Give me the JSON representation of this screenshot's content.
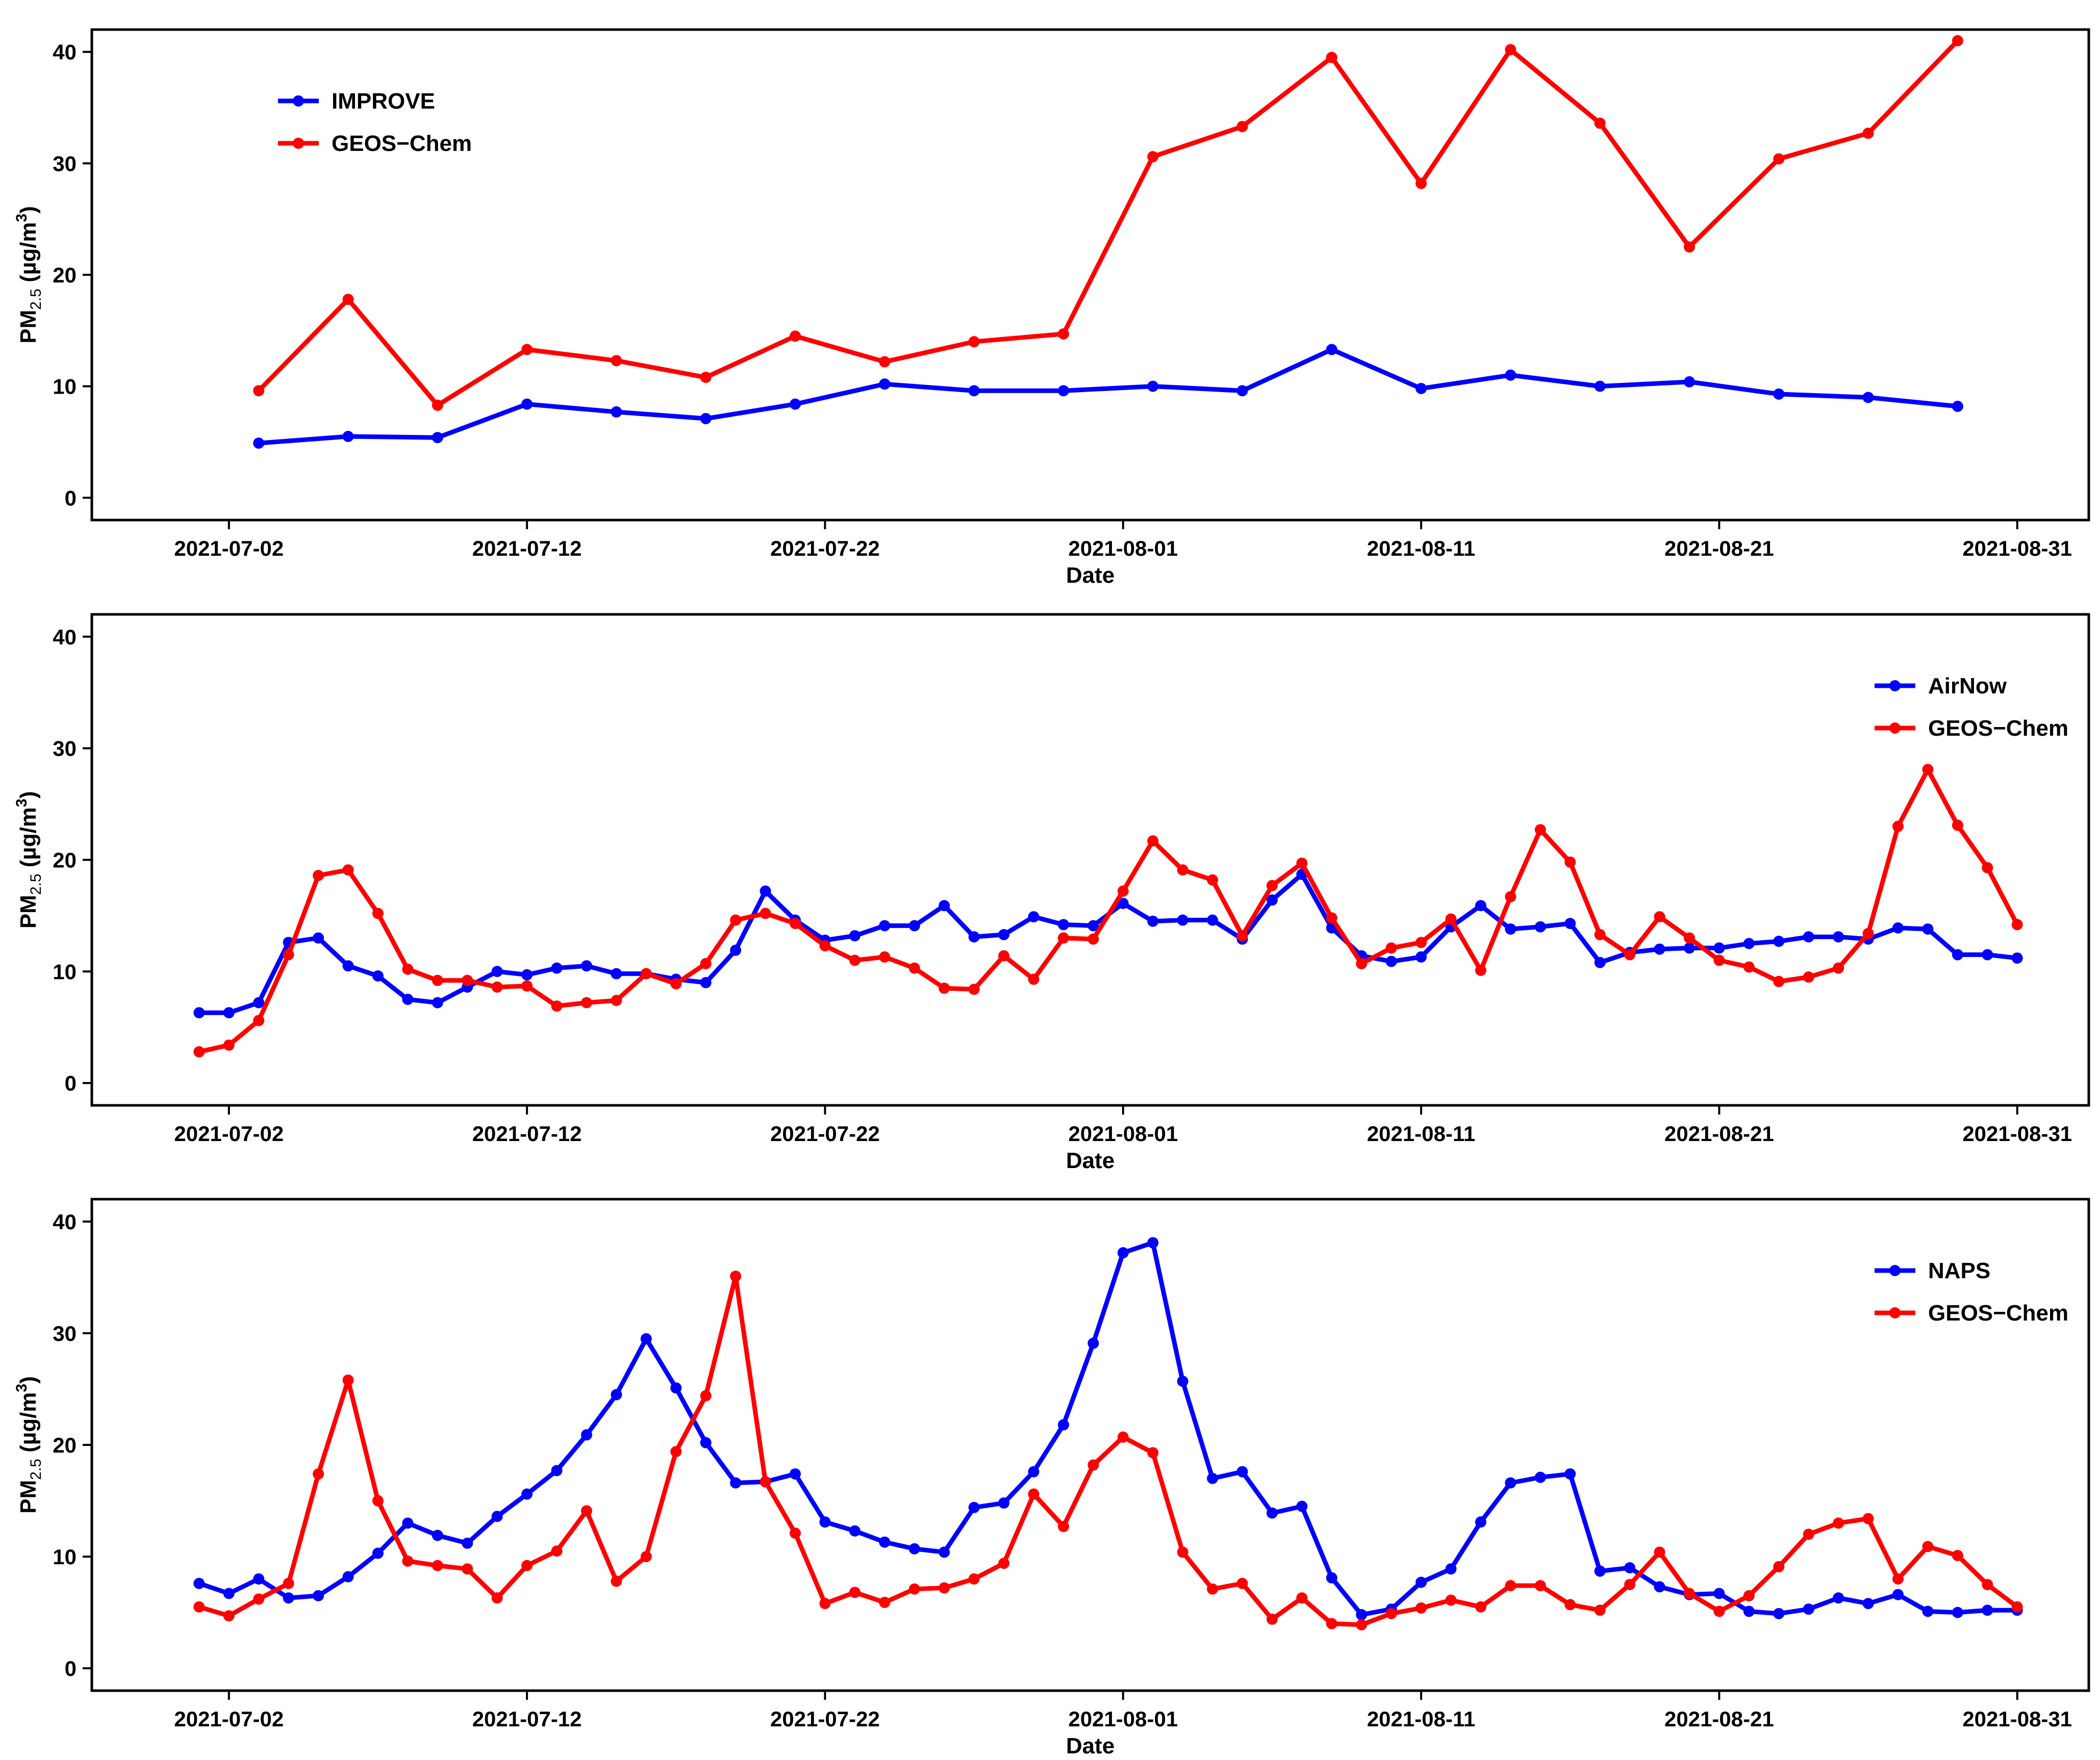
{
  "chart_data": [
    {
      "type": "line",
      "xlabel": "Date",
      "ylabel": "PM2.5 (µg/m3)",
      "ylabel_main": "PM",
      "ylabel_sub": "2.5",
      "ylabel_unit_pre": " (µg/m",
      "ylabel_unit_sup": "3",
      "ylabel_unit_post": ")",
      "ylim": [
        -2,
        42
      ],
      "yticks": [
        0,
        10,
        20,
        30,
        40
      ],
      "xlim_days": [
        -3.6,
        63.4
      ],
      "xticks": [
        {
          "day": 1,
          "label": "2021-07-02"
        },
        {
          "day": 11,
          "label": "2021-07-12"
        },
        {
          "day": 21,
          "label": "2021-07-22"
        },
        {
          "day": 31,
          "label": "2021-08-01"
        },
        {
          "day": 41,
          "label": "2021-08-11"
        },
        {
          "day": 51,
          "label": "2021-08-21"
        },
        {
          "day": 61,
          "label": "2021-08-31"
        }
      ],
      "legend_position": "top-left",
      "series": [
        {
          "name": "IMPROVE",
          "color": "#0000ff",
          "x": [
            2,
            5,
            8,
            11,
            14,
            17,
            20,
            23,
            26,
            29,
            32,
            35,
            38,
            41,
            44,
            47,
            50,
            53,
            56,
            59
          ],
          "values": [
            4.9,
            5.5,
            5.4,
            8.4,
            7.7,
            7.1,
            8.4,
            10.2,
            9.6,
            9.6,
            10.0,
            9.6,
            13.3,
            9.8,
            11.0,
            10.0,
            10.4,
            9.3,
            9.0,
            8.2
          ]
        },
        {
          "name": "GEOS−Chem",
          "color": "#ff0000",
          "x": [
            2,
            5,
            8,
            11,
            14,
            17,
            20,
            23,
            26,
            29,
            32,
            35,
            38,
            41,
            44,
            47,
            50,
            53,
            56,
            59
          ],
          "values": [
            9.6,
            17.8,
            8.3,
            13.3,
            12.3,
            10.8,
            14.5,
            12.2,
            14.0,
            14.7,
            30.6,
            33.3,
            39.5,
            28.2,
            40.2,
            33.6,
            22.5,
            30.4,
            32.7,
            41.0
          ]
        }
      ]
    },
    {
      "type": "line",
      "xlabel": "Date",
      "ylabel": "PM2.5 (µg/m3)",
      "ylabel_main": "PM",
      "ylabel_sub": "2.5",
      "ylabel_unit_pre": " (µg/m",
      "ylabel_unit_sup": "3",
      "ylabel_unit_post": ")",
      "ylim": [
        -2,
        42
      ],
      "yticks": [
        0,
        10,
        20,
        30,
        40
      ],
      "xlim_days": [
        -3.6,
        63.4
      ],
      "xticks": [
        {
          "day": 1,
          "label": "2021-07-02"
        },
        {
          "day": 11,
          "label": "2021-07-12"
        },
        {
          "day": 21,
          "label": "2021-07-22"
        },
        {
          "day": 31,
          "label": "2021-08-01"
        },
        {
          "day": 41,
          "label": "2021-08-11"
        },
        {
          "day": 51,
          "label": "2021-08-21"
        },
        {
          "day": 61,
          "label": "2021-08-31"
        }
      ],
      "legend_position": "top-right",
      "series": [
        {
          "name": "AirNow",
          "color": "#0000ff",
          "x": [
            0,
            1,
            2,
            3,
            4,
            5,
            6,
            7,
            8,
            9,
            10,
            11,
            12,
            13,
            14,
            15,
            16,
            17,
            18,
            19,
            20,
            21,
            22,
            23,
            24,
            25,
            26,
            27,
            28,
            29,
            30,
            31,
            32,
            33,
            34,
            35,
            36,
            37,
            38,
            39,
            40,
            41,
            42,
            43,
            44,
            45,
            46,
            47,
            48,
            49,
            50,
            51,
            52,
            53,
            54,
            55,
            56,
            57,
            58,
            59,
            60,
            61
          ],
          "values": [
            6.3,
            6.3,
            7.2,
            12.6,
            13.0,
            10.5,
            9.6,
            7.5,
            7.2,
            8.6,
            10.0,
            9.7,
            10.3,
            10.5,
            9.8,
            9.8,
            9.3,
            9.0,
            11.9,
            17.2,
            14.6,
            12.8,
            13.2,
            14.1,
            14.1,
            15.9,
            13.1,
            13.3,
            14.9,
            14.2,
            14.1,
            16.1,
            14.5,
            14.6,
            14.6,
            12.9,
            16.4,
            18.7,
            13.9,
            11.4,
            10.9,
            11.3,
            14.0,
            15.9,
            13.8,
            14.0,
            14.3,
            10.8,
            11.7,
            12.0,
            12.1,
            12.1,
            12.5,
            12.7,
            13.1,
            13.1,
            12.9,
            13.9,
            13.8,
            11.5,
            11.5,
            11.2
          ]
        },
        {
          "name": "GEOS−Chem",
          "color": "#ff0000",
          "x": [
            0,
            1,
            2,
            3,
            4,
            5,
            6,
            7,
            8,
            9,
            10,
            11,
            12,
            13,
            14,
            15,
            16,
            17,
            18,
            19,
            20,
            21,
            22,
            23,
            24,
            25,
            26,
            27,
            28,
            29,
            30,
            31,
            32,
            33,
            34,
            35,
            36,
            37,
            38,
            39,
            40,
            41,
            42,
            43,
            44,
            45,
            46,
            47,
            48,
            49,
            50,
            51,
            52,
            53,
            54,
            55,
            56,
            57,
            58,
            59,
            60,
            61
          ],
          "values": [
            2.8,
            3.4,
            5.6,
            11.5,
            18.6,
            19.1,
            15.2,
            10.2,
            9.2,
            9.2,
            8.6,
            8.7,
            6.9,
            7.2,
            7.4,
            9.8,
            8.9,
            10.7,
            14.6,
            15.2,
            14.3,
            12.3,
            11.0,
            11.3,
            10.3,
            8.5,
            8.4,
            11.4,
            9.3,
            13.0,
            12.9,
            17.2,
            21.7,
            19.1,
            18.2,
            13.2,
            17.7,
            19.7,
            14.8,
            10.7,
            12.1,
            12.6,
            14.7,
            10.1,
            16.7,
            22.7,
            19.8,
            13.3,
            11.5,
            14.9,
            13.0,
            11.0,
            10.4,
            9.1,
            9.5,
            10.3,
            13.4,
            23.0,
            28.1,
            23.1,
            19.3,
            14.2
          ]
        }
      ]
    },
    {
      "type": "line",
      "xlabel": "Date",
      "ylabel": "PM2.5 (µg/m3)",
      "ylabel_main": "PM",
      "ylabel_sub": "2.5",
      "ylabel_unit_pre": " (µg/m",
      "ylabel_unit_sup": "3",
      "ylabel_unit_post": ")",
      "ylim": [
        -2,
        42
      ],
      "yticks": [
        0,
        10,
        20,
        30,
        40
      ],
      "xlim_days": [
        -3.6,
        63.4
      ],
      "xticks": [
        {
          "day": 1,
          "label": "2021-07-02"
        },
        {
          "day": 11,
          "label": "2021-07-12"
        },
        {
          "day": 21,
          "label": "2021-07-22"
        },
        {
          "day": 31,
          "label": "2021-08-01"
        },
        {
          "day": 41,
          "label": "2021-08-11"
        },
        {
          "day": 51,
          "label": "2021-08-21"
        },
        {
          "day": 61,
          "label": "2021-08-31"
        }
      ],
      "legend_position": "top-right",
      "series": [
        {
          "name": "NAPS",
          "color": "#0000ff",
          "x": [
            0,
            1,
            2,
            3,
            4,
            5,
            6,
            7,
            8,
            9,
            10,
            11,
            12,
            13,
            14,
            15,
            16,
            17,
            18,
            19,
            20,
            21,
            22,
            23,
            24,
            25,
            26,
            27,
            28,
            29,
            30,
            31,
            32,
            33,
            34,
            35,
            36,
            37,
            38,
            39,
            40,
            41,
            42,
            43,
            44,
            45,
            46,
            47,
            48,
            49,
            50,
            51,
            52,
            53,
            54,
            55,
            56,
            57,
            58,
            59,
            60,
            61
          ],
          "values": [
            7.6,
            6.7,
            8.0,
            6.3,
            6.5,
            8.2,
            10.3,
            13.0,
            11.9,
            11.2,
            13.6,
            15.6,
            17.7,
            20.9,
            24.5,
            29.5,
            25.1,
            20.2,
            16.6,
            16.7,
            17.4,
            13.1,
            12.3,
            11.3,
            10.7,
            10.4,
            14.4,
            14.8,
            17.6,
            21.8,
            29.1,
            37.2,
            38.1,
            25.7,
            17.0,
            17.6,
            13.9,
            14.5,
            8.1,
            4.8,
            5.3,
            7.7,
            8.9,
            13.1,
            16.6,
            17.1,
            17.4,
            8.7,
            9.0,
            7.3,
            6.6,
            6.7,
            5.1,
            4.9,
            5.3,
            6.3,
            5.8,
            6.6,
            5.1,
            5.0,
            5.2,
            5.2
          ]
        },
        {
          "name": "GEOS−Chem",
          "color": "#ff0000",
          "x": [
            0,
            1,
            2,
            3,
            4,
            5,
            6,
            7,
            8,
            9,
            10,
            11,
            12,
            13,
            14,
            15,
            16,
            17,
            18,
            19,
            20,
            21,
            22,
            23,
            24,
            25,
            26,
            27,
            28,
            29,
            30,
            31,
            32,
            33,
            34,
            35,
            36,
            37,
            38,
            39,
            40,
            41,
            42,
            43,
            44,
            45,
            46,
            47,
            48,
            49,
            50,
            51,
            52,
            53,
            54,
            55,
            56,
            57,
            58,
            59,
            60,
            61
          ],
          "values": [
            5.5,
            4.7,
            6.2,
            7.6,
            17.4,
            25.8,
            15.0,
            9.6,
            9.2,
            8.9,
            6.3,
            9.2,
            10.5,
            14.1,
            7.8,
            10.0,
            19.4,
            24.4,
            35.1,
            16.7,
            12.1,
            5.8,
            6.8,
            5.9,
            7.1,
            7.2,
            8.0,
            9.4,
            15.6,
            12.7,
            18.2,
            20.7,
            19.3,
            10.4,
            7.1,
            7.6,
            4.4,
            6.3,
            4.0,
            3.9,
            4.9,
            5.4,
            6.1,
            5.5,
            7.4,
            7.4,
            5.7,
            5.2,
            7.5,
            10.4,
            6.7,
            5.1,
            6.5,
            9.1,
            12.0,
            13.0,
            13.4,
            8.0,
            10.9,
            10.1,
            7.5,
            5.5
          ]
        }
      ]
    }
  ]
}
